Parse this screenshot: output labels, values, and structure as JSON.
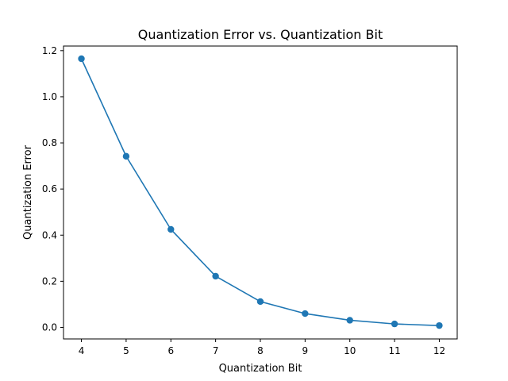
{
  "chart_data": {
    "type": "line",
    "title": "Quantization Error vs. Quantization Bit",
    "xlabel": "Quantization Bit",
    "ylabel": "Quantization Error",
    "x": [
      4,
      5,
      6,
      7,
      8,
      9,
      10,
      11,
      12
    ],
    "series": [
      {
        "values": [
          1.165,
          0.742,
          0.425,
          0.222,
          0.112,
          0.06,
          0.031,
          0.015,
          0.008
        ],
        "color": "#1f77b4",
        "marker": "circle"
      }
    ],
    "xlim": [
      3.6,
      12.4
    ],
    "ylim": [
      -0.05,
      1.22
    ],
    "x_ticks": [
      "4",
      "5",
      "6",
      "7",
      "8",
      "9",
      "10",
      "11",
      "12"
    ],
    "y_ticks": [
      "0.0",
      "0.2",
      "0.4",
      "0.6",
      "0.8",
      "1.0",
      "1.2"
    ],
    "grid": false,
    "legend": false
  }
}
